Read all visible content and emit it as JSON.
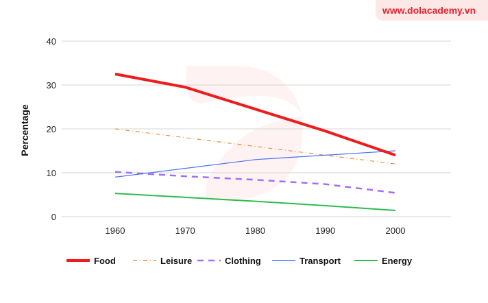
{
  "watermark": "www.dolacademy.vn",
  "chart_data": {
    "type": "line",
    "title": "",
    "xlabel": "",
    "ylabel": "Percentage",
    "x": [
      1960,
      1970,
      1980,
      1990,
      2000
    ],
    "ylim": [
      0,
      40
    ],
    "yticks": [
      0,
      10,
      20,
      30,
      40
    ],
    "grid": true,
    "legend_position": "bottom",
    "series": [
      {
        "name": "Food",
        "values": [
          32.5,
          29.5,
          24.5,
          19.5,
          14
        ],
        "color": "#ee1c1c",
        "style": "solid-thick"
      },
      {
        "name": "Leisure",
        "values": [
          20,
          18,
          16,
          14,
          12
        ],
        "color": "#f08a3c",
        "style": "dash-dot"
      },
      {
        "name": "Clothing",
        "values": [
          10.2,
          9.2,
          8.4,
          7.4,
          5.4
        ],
        "color": "#a46cf7",
        "style": "dashed"
      },
      {
        "name": "Transport",
        "values": [
          9,
          11,
          13,
          14,
          15
        ],
        "color": "#4a72f0",
        "style": "solid-thin"
      },
      {
        "name": "Energy",
        "values": [
          5.3,
          4.4,
          3.5,
          2.5,
          1.4
        ],
        "color": "#2cbb4f",
        "style": "solid"
      }
    ]
  }
}
